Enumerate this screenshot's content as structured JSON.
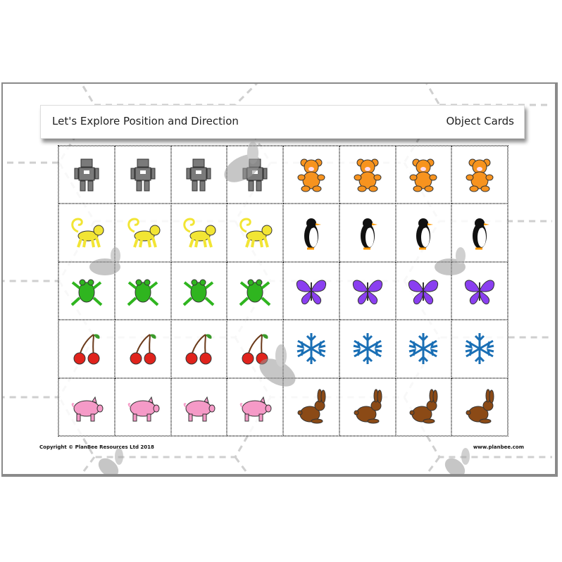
{
  "header": {
    "title": "Let's Explore Position and Direction",
    "subtitle": "Object Cards"
  },
  "footer": {
    "copyright": "Copyright © PlanBee Resources Ltd 2018",
    "website": "www.planbee.com"
  },
  "cards": {
    "columns": 8,
    "rows": [
      [
        "robot",
        "robot",
        "robot",
        "robot",
        "teddy-bear",
        "teddy-bear",
        "teddy-bear",
        "teddy-bear"
      ],
      [
        "monkey",
        "monkey",
        "monkey",
        "monkey",
        "penguin",
        "penguin",
        "penguin",
        "penguin"
      ],
      [
        "frog",
        "frog",
        "frog",
        "frog",
        "butterfly",
        "butterfly",
        "butterfly",
        "butterfly"
      ],
      [
        "cherries",
        "cherries",
        "cherries",
        "cherries",
        "snowflake",
        "snowflake",
        "snowflake",
        "snowflake"
      ],
      [
        "pig",
        "pig",
        "pig",
        "pig",
        "rabbit",
        "rabbit",
        "rabbit",
        "rabbit"
      ]
    ]
  },
  "colors": {
    "robot": "#7a7a7a",
    "teddy-bear": "#f7931e",
    "monkey": "#f2e534",
    "penguin": "#111111",
    "frog": "#2fb51f",
    "butterfly": "#8a3ff0",
    "cherries": "#e0231c",
    "snowflake": "#1a6fb5",
    "pig": "#f59ac7",
    "rabbit": "#8b4a16"
  }
}
